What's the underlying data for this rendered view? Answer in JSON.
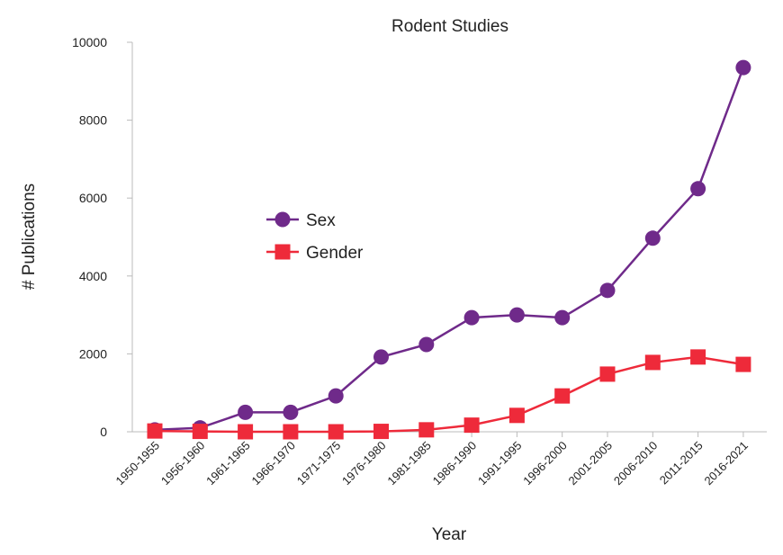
{
  "chart_data": {
    "type": "line",
    "title": "Rodent Studies",
    "xlabel": "Year",
    "ylabel": "# Publications",
    "ylim": [
      0,
      10000
    ],
    "yticks": [
      0,
      2000,
      4000,
      6000,
      8000,
      10000
    ],
    "grid": false,
    "legend_placement": "center-left",
    "categories": [
      "1950-1955",
      "1956-1960",
      "1961-1965",
      "1966-1970",
      "1971-1975",
      "1976-1980",
      "1981-1985",
      "1986-1990",
      "1991-1995",
      "1996-2000",
      "2001-2005",
      "2006-2010",
      "2011-2015",
      "2016-2021"
    ],
    "series": [
      {
        "name": "Sex",
        "color": "#6f2a8a",
        "marker": "circle",
        "values": [
          50,
          100,
          500,
          500,
          920,
          1920,
          2240,
          2930,
          3000,
          2930,
          3630,
          4970,
          6240,
          9350
        ]
      },
      {
        "name": "Gender",
        "color": "#ee2a3a",
        "marker": "square",
        "values": [
          20,
          10,
          0,
          0,
          0,
          10,
          50,
          170,
          420,
          920,
          1480,
          1780,
          1920,
          1730
        ]
      }
    ]
  }
}
